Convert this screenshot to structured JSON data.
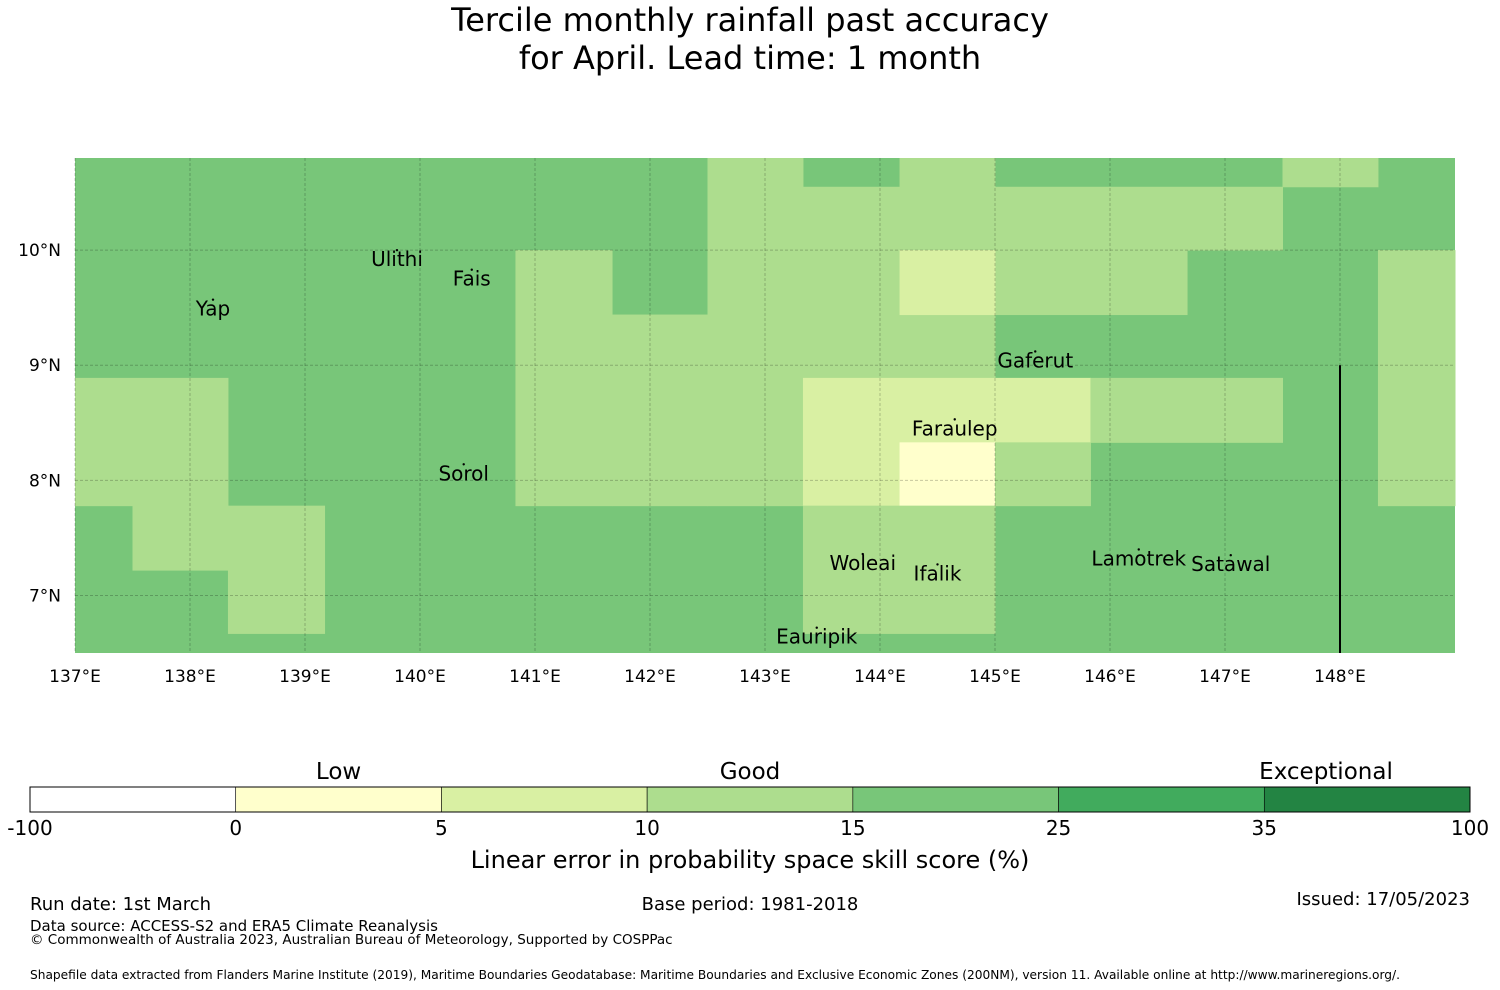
{
  "title": {
    "line1": "Tercile monthly rainfall past accuracy",
    "line2": "for April. Lead time: 1 month"
  },
  "map": {
    "lon_range": [
      137.0,
      149.0
    ],
    "lat_range": [
      6.5,
      10.8
    ],
    "lon_ticks": [
      137,
      138,
      139,
      140,
      141,
      142,
      143,
      144,
      145,
      146,
      147,
      148
    ],
    "lon_tick_labels": [
      "137°E",
      "138°E",
      "139°E",
      "140°E",
      "141°E",
      "142°E",
      "143°E",
      "144°E",
      "145°E",
      "146°E",
      "147°E",
      "148°E"
    ],
    "lat_ticks": [
      7,
      8,
      9,
      10
    ],
    "lat_tick_labels": [
      "7°N",
      "8°N",
      "9°N",
      "10°N"
    ],
    "grid": true,
    "boundary_line": {
      "lon": 148.0,
      "lat_from": 6.5,
      "lat_to": 9.0
    },
    "category_colors": {
      "c_0_5": "#ffffcc",
      "c_5_10": "#d9f0a3",
      "c_10_15": "#addd8e",
      "c_15_25": "#78c679"
    },
    "background_category": "c_15_25",
    "cells": [
      {
        "lon0": 142.5,
        "lon1": 143.33,
        "lat0": 10.0,
        "lat1": 10.8,
        "cat": "c_10_15"
      },
      {
        "lon0": 143.33,
        "lon1": 144.17,
        "lat0": 10.0,
        "lat1": 10.55,
        "cat": "c_10_15"
      },
      {
        "lon0": 144.17,
        "lon1": 145.0,
        "lat0": 10.0,
        "lat1": 10.8,
        "cat": "c_10_15"
      },
      {
        "lon0": 145.0,
        "lon1": 147.5,
        "lat0": 10.0,
        "lat1": 10.55,
        "cat": "c_10_15"
      },
      {
        "lon0": 147.5,
        "lon1": 148.33,
        "lat0": 10.55,
        "lat1": 10.8,
        "cat": "c_10_15"
      },
      {
        "lon0": 140.83,
        "lon1": 141.67,
        "lat0": 7.78,
        "lat1": 10.0,
        "cat": "c_10_15"
      },
      {
        "lon0": 141.67,
        "lon1": 142.5,
        "lat0": 7.78,
        "lat1": 9.44,
        "cat": "c_10_15"
      },
      {
        "lon0": 142.5,
        "lon1": 144.17,
        "lat0": 7.78,
        "lat1": 10.0,
        "cat": "c_10_15"
      },
      {
        "lon0": 144.17,
        "lon1": 145.0,
        "lat0": 8.89,
        "lat1": 9.44,
        "cat": "c_10_15"
      },
      {
        "lon0": 145.0,
        "lon1": 146.67,
        "lat0": 9.44,
        "lat1": 10.0,
        "cat": "c_10_15"
      },
      {
        "lon0": 144.17,
        "lon1": 145.0,
        "lat0": 9.44,
        "lat1": 10.0,
        "cat": "c_5_10"
      },
      {
        "lon0": 143.33,
        "lon1": 145.83,
        "lat0": 8.33,
        "lat1": 8.89,
        "cat": "c_5_10"
      },
      {
        "lon0": 143.33,
        "lon1": 144.17,
        "lat0": 7.78,
        "lat1": 8.33,
        "cat": "c_5_10"
      },
      {
        "lon0": 144.17,
        "lon1": 145.0,
        "lat0": 7.78,
        "lat1": 8.33,
        "cat": "c_0_5"
      },
      {
        "lon0": 145.0,
        "lon1": 145.83,
        "lat0": 7.78,
        "lat1": 8.33,
        "cat": "c_10_15"
      },
      {
        "lon0": 145.83,
        "lon1": 147.5,
        "lat0": 8.33,
        "lat1": 8.89,
        "cat": "c_10_15"
      },
      {
        "lon0": 148.33,
        "lon1": 149.0,
        "lat0": 7.78,
        "lat1": 10.0,
        "cat": "c_10_15"
      },
      {
        "lon0": 137.0,
        "lon1": 138.33,
        "lat0": 7.78,
        "lat1": 8.89,
        "cat": "c_10_15"
      },
      {
        "lon0": 137.5,
        "lon1": 138.33,
        "lat0": 7.22,
        "lat1": 7.78,
        "cat": "c_10_15"
      },
      {
        "lon0": 138.33,
        "lon1": 139.17,
        "lat0": 6.67,
        "lat1": 7.78,
        "cat": "c_10_15"
      },
      {
        "lon0": 143.33,
        "lon1": 145.0,
        "lat0": 6.67,
        "lat1": 7.78,
        "cat": "c_10_15"
      }
    ],
    "islands": [
      {
        "name": "Ulithi",
        "lon": 139.8,
        "lat": 9.93
      },
      {
        "name": "Fais",
        "lon": 140.45,
        "lat": 9.76
      },
      {
        "name": "Yap",
        "lon": 138.2,
        "lat": 9.5
      },
      {
        "name": "Gaferut",
        "lon": 145.35,
        "lat": 9.05
      },
      {
        "name": "Faraulep",
        "lon": 144.65,
        "lat": 8.46
      },
      {
        "name": "Sorol",
        "lon": 140.38,
        "lat": 8.07
      },
      {
        "name": "Woleai",
        "lon": 143.85,
        "lat": 7.29
      },
      {
        "name": "Ifalik",
        "lon": 144.5,
        "lat": 7.2
      },
      {
        "name": "Lamotrek",
        "lon": 146.25,
        "lat": 7.33
      },
      {
        "name": "Satawal",
        "lon": 147.05,
        "lat": 7.28
      },
      {
        "name": "Eauripik",
        "lon": 143.45,
        "lat": 6.65
      }
    ]
  },
  "colorbar": {
    "bands": [
      {
        "from": "-100",
        "to": "0",
        "color": "#ffffff"
      },
      {
        "from": "0",
        "to": "5",
        "color": "#ffffcc"
      },
      {
        "from": "5",
        "to": "10",
        "color": "#d9f0a3"
      },
      {
        "from": "10",
        "to": "15",
        "color": "#addd8e"
      },
      {
        "from": "15",
        "to": "25",
        "color": "#78c679"
      },
      {
        "from": "25",
        "to": "35",
        "color": "#41ab5d"
      },
      {
        "from": "35",
        "to": "100",
        "color": "#238443"
      }
    ],
    "tick_labels": [
      "-100",
      "0",
      "5",
      "10",
      "15",
      "25",
      "35",
      "100"
    ],
    "category_labels": [
      "Low",
      "Good",
      "Exceptional"
    ],
    "axis_label": "Linear error in probability space skill score (%)"
  },
  "footer": {
    "run_date": "Run date: 1st March",
    "base_period": "Base period: 1981-2018",
    "issued": "Issued: 17/05/2023",
    "data_source": "Data source: ACCESS-S2 and ERA5 Climate Reanalysis",
    "copyright": "© Commonwealth of Australia 2023, Australian Bureau of Meteorology, Supported by COSPPac",
    "shapefile": "Shapefile data extracted from Flanders Marine Institute (2019), Maritime Boundaries Geodatabase: Maritime Boundaries and Exclusive Economic Zones (200NM), version 11. Available online at http://www.marineregions.org/."
  }
}
